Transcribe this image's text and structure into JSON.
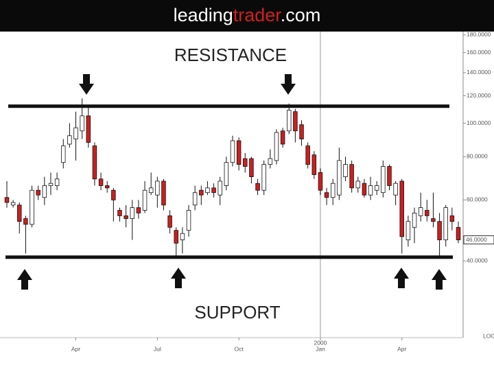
{
  "header": {
    "brand": [
      "leading",
      "trader",
      ".com"
    ]
  },
  "chart_data": {
    "type": "candlestick",
    "log_scale": true,
    "scale_label": "LOG",
    "up_color": "#ffffff",
    "down_color": "#cc1f1f",
    "ylim": [
      24,
      184
    ],
    "yticks": [
      {
        "value": 180,
        "label": "180.0000"
      },
      {
        "value": 160,
        "label": "160.0000"
      },
      {
        "value": 140,
        "label": "140.0000"
      },
      {
        "value": 120,
        "label": "120.0000"
      },
      {
        "value": 100,
        "label": "100.0000"
      },
      {
        "value": 80,
        "label": "80.0000"
      },
      {
        "value": 60,
        "label": "60.0000"
      },
      {
        "value": 40,
        "label": "40.0000"
      }
    ],
    "last_price": {
      "value": 46,
      "label": "46.0000"
    },
    "xticks": [
      {
        "value": 11,
        "label": "Apr"
      },
      {
        "value": 24,
        "label": "Jul"
      },
      {
        "value": 37,
        "label": "Oct"
      },
      {
        "value": 50,
        "label": "Jan"
      },
      {
        "value": 63,
        "label": "Apr"
      }
    ],
    "year_marker": {
      "value": 50,
      "label": "2000"
    },
    "levels": [
      {
        "name": "RESISTANCE",
        "value": 112,
        "color": "#111111"
      },
      {
        "name": "SUPPORT",
        "value": 41,
        "color": "#111111"
      }
    ],
    "open": [
      61,
      58,
      58,
      53,
      51,
      64,
      61,
      66,
      66,
      77,
      87,
      90,
      95,
      105,
      86,
      69,
      66,
      64,
      56,
      54,
      53,
      57,
      56,
      63,
      62,
      68,
      54,
      49,
      46,
      49,
      58,
      64,
      63,
      65,
      62,
      66,
      77,
      89,
      79,
      79,
      67,
      64,
      76,
      78,
      95,
      95,
      108,
      99,
      86,
      81,
      72,
      63,
      61,
      62,
      70,
      76,
      65,
      67,
      62,
      64,
      63,
      75,
      62,
      68,
      46,
      50,
      54,
      56,
      53,
      52,
      46,
      54,
      50
    ],
    "high": [
      68,
      60,
      59,
      54,
      66,
      66,
      70,
      72,
      72,
      90,
      100,
      108,
      118,
      112,
      88,
      72,
      68,
      65,
      57,
      58,
      60,
      60,
      68,
      72,
      70,
      69,
      56,
      50,
      50,
      58,
      66,
      66,
      68,
      67,
      70,
      80,
      92,
      91,
      82,
      80,
      69,
      78,
      84,
      96,
      97,
      114,
      110,
      102,
      88,
      83,
      74,
      65,
      69,
      85,
      80,
      78,
      70,
      69,
      70,
      68,
      78,
      76,
      68,
      69,
      54,
      57,
      63,
      60,
      63,
      55,
      58,
      57,
      52
    ],
    "low": [
      57,
      57,
      48,
      42,
      50,
      60,
      58,
      62,
      64,
      74,
      85,
      78,
      90,
      85,
      66,
      64,
      63,
      52,
      52,
      50,
      46,
      53,
      55,
      62,
      57,
      56,
      48,
      41,
      42,
      47,
      56,
      58,
      62,
      61,
      58,
      64,
      75,
      73,
      72,
      67,
      62,
      62,
      74,
      76,
      85,
      93,
      88,
      86,
      74,
      69,
      62,
      58,
      58,
      60,
      68,
      63,
      63,
      61,
      60,
      62,
      61,
      64,
      58,
      42,
      44,
      45,
      52,
      52,
      50,
      41,
      44,
      49,
      45
    ],
    "close": [
      59,
      59,
      52,
      51,
      64,
      62,
      66,
      67,
      69,
      86,
      92,
      97,
      105,
      88,
      69,
      66,
      65,
      60,
      54,
      53,
      57,
      55,
      64,
      65,
      68,
      58,
      50,
      45,
      48,
      56,
      63,
      62,
      65,
      63,
      68,
      77,
      89,
      76,
      75,
      70,
      64,
      76,
      79,
      94,
      87,
      109,
      95,
      90,
      76,
      71,
      64,
      61,
      67,
      78,
      76,
      65,
      68,
      62,
      66,
      66,
      75,
      66,
      67,
      47,
      52,
      55,
      57,
      54,
      52,
      46,
      57,
      52,
      46
    ]
  }
}
